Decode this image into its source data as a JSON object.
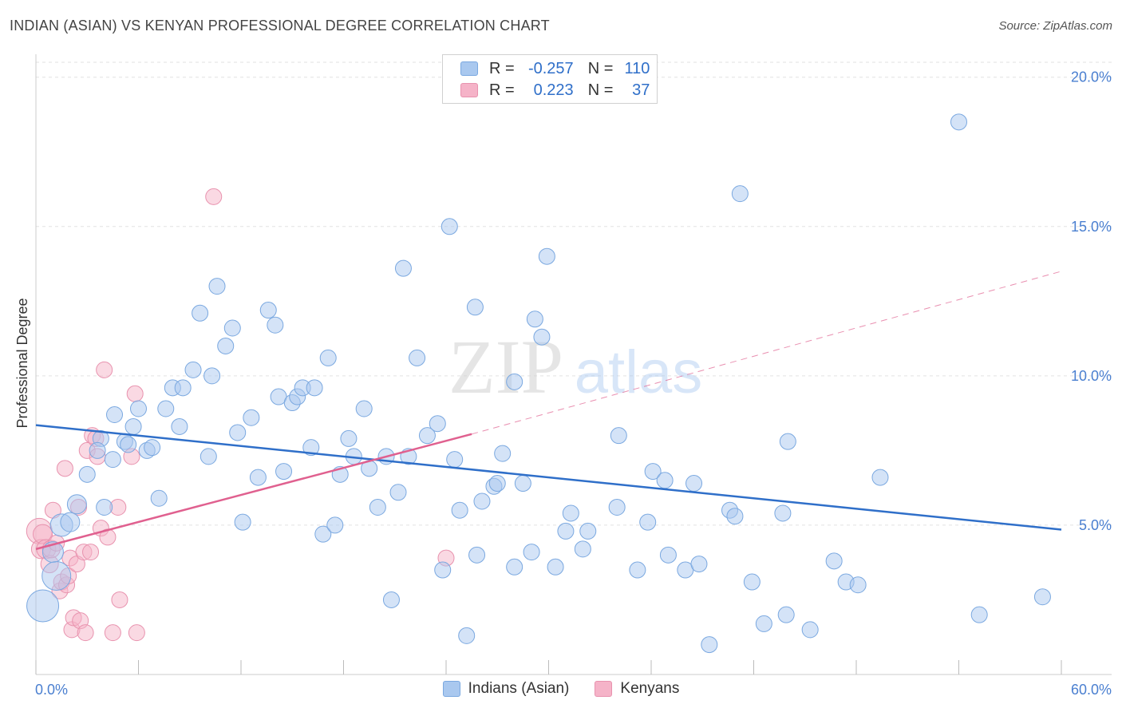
{
  "header": {
    "title": "INDIAN (ASIAN) VS KENYAN PROFESSIONAL DEGREE CORRELATION CHART",
    "source": "Source: ZipAtlas.com"
  },
  "watermark": {
    "zip": "ZIP",
    "atlas": "atlas"
  },
  "legend": {
    "rows": [
      {
        "r_label": "R =",
        "r_value": "-0.257",
        "n_label": "N =",
        "n_value": "110",
        "color": "#a9c8ef"
      },
      {
        "r_label": "R =",
        "r_value": "0.223",
        "n_label": "N =",
        "n_value": "37",
        "color": "#f5b3c8"
      }
    ]
  },
  "bottom_legend": {
    "items": [
      {
        "label": "Indians (Asian)",
        "color": "#a9c8ef"
      },
      {
        "label": "Kenyans",
        "color": "#f5b3c8"
      }
    ]
  },
  "colors": {
    "blue_fill": "#a9c8ef",
    "blue_stroke": "#7aa8e0",
    "blue_line": "#2f6fc9",
    "pink_fill": "#f5b3c8",
    "pink_stroke": "#e892ae",
    "pink_line": "#e0608f",
    "tick_label": "#4a7fd0",
    "grid": "#e2e2e2"
  },
  "chart_data": {
    "type": "scatter",
    "title": "INDIAN (ASIAN) VS KENYAN PROFESSIONAL DEGREE CORRELATION CHART",
    "xlabel": "",
    "ylabel": "Professional Degree",
    "xlim": [
      0,
      60
    ],
    "ylim": [
      0,
      20.5
    ],
    "x_tick_labels": [
      "0.0%",
      "60.0%"
    ],
    "y_ticks": [
      5,
      10,
      15,
      20
    ],
    "y_tick_labels": [
      "5.0%",
      "10.0%",
      "15.0%",
      "20.0%"
    ],
    "grid": true,
    "legend_position": "top-center",
    "series": [
      {
        "name": "Indians (Asian)",
        "color": "#a9c8ef",
        "trend": {
          "x": [
            0,
            60
          ],
          "y": [
            8.35,
            4.85
          ],
          "dashed": false
        },
        "points": [
          [
            1.5,
            5.0
          ],
          [
            1.0,
            4.1
          ],
          [
            0.4,
            2.3
          ],
          [
            1.2,
            3.3
          ],
          [
            2.4,
            5.7
          ],
          [
            2.0,
            5.1
          ],
          [
            3.0,
            6.7
          ],
          [
            3.8,
            7.9
          ],
          [
            3.6,
            7.5
          ],
          [
            4.0,
            5.6
          ],
          [
            4.5,
            7.2
          ],
          [
            4.6,
            8.7
          ],
          [
            5.2,
            7.8
          ],
          [
            5.4,
            7.7
          ],
          [
            5.7,
            8.3
          ],
          [
            6.0,
            8.9
          ],
          [
            6.5,
            7.5
          ],
          [
            6.8,
            7.6
          ],
          [
            7.2,
            5.9
          ],
          [
            7.6,
            8.9
          ],
          [
            8.0,
            9.6
          ],
          [
            8.4,
            8.3
          ],
          [
            8.6,
            9.6
          ],
          [
            9.2,
            10.2
          ],
          [
            9.6,
            12.1
          ],
          [
            10.1,
            7.3
          ],
          [
            10.3,
            10.0
          ],
          [
            10.6,
            13.0
          ],
          [
            11.1,
            11.0
          ],
          [
            11.5,
            11.6
          ],
          [
            11.8,
            8.1
          ],
          [
            12.1,
            5.1
          ],
          [
            12.6,
            8.6
          ],
          [
            13.0,
            6.6
          ],
          [
            13.6,
            12.2
          ],
          [
            14.0,
            11.7
          ],
          [
            14.2,
            9.3
          ],
          [
            14.5,
            6.8
          ],
          [
            15.0,
            9.1
          ],
          [
            15.3,
            9.3
          ],
          [
            15.6,
            9.6
          ],
          [
            16.1,
            7.6
          ],
          [
            16.3,
            9.6
          ],
          [
            16.8,
            4.7
          ],
          [
            17.1,
            10.6
          ],
          [
            17.5,
            5.0
          ],
          [
            17.8,
            6.7
          ],
          [
            18.3,
            7.9
          ],
          [
            18.6,
            7.3
          ],
          [
            19.2,
            8.9
          ],
          [
            19.5,
            6.9
          ],
          [
            20.0,
            5.6
          ],
          [
            20.5,
            7.3
          ],
          [
            20.8,
            2.5
          ],
          [
            21.2,
            6.1
          ],
          [
            21.5,
            13.6
          ],
          [
            21.8,
            7.3
          ],
          [
            22.3,
            10.6
          ],
          [
            22.9,
            8.0
          ],
          [
            23.5,
            8.4
          ],
          [
            23.8,
            3.5
          ],
          [
            24.2,
            15.0
          ],
          [
            24.5,
            7.2
          ],
          [
            24.8,
            5.5
          ],
          [
            25.2,
            1.3
          ],
          [
            25.7,
            12.3
          ],
          [
            25.8,
            4.0
          ],
          [
            26.1,
            5.8
          ],
          [
            26.8,
            6.3
          ],
          [
            27.0,
            6.4
          ],
          [
            27.3,
            7.4
          ],
          [
            28.0,
            3.6
          ],
          [
            28.0,
            9.8
          ],
          [
            28.5,
            6.4
          ],
          [
            29.0,
            4.1
          ],
          [
            29.2,
            11.9
          ],
          [
            29.6,
            11.3
          ],
          [
            29.9,
            14.0
          ],
          [
            30.4,
            3.6
          ],
          [
            31.0,
            4.8
          ],
          [
            31.3,
            5.4
          ],
          [
            32.0,
            4.2
          ],
          [
            32.3,
            4.8
          ],
          [
            34.0,
            5.6
          ],
          [
            34.1,
            8.0
          ],
          [
            35.2,
            3.5
          ],
          [
            35.8,
            5.1
          ],
          [
            36.1,
            6.8
          ],
          [
            36.8,
            6.5
          ],
          [
            37.0,
            4.0
          ],
          [
            38.0,
            3.5
          ],
          [
            38.5,
            6.4
          ],
          [
            38.8,
            3.7
          ],
          [
            39.4,
            1.0
          ],
          [
            40.6,
            5.5
          ],
          [
            40.9,
            5.3
          ],
          [
            41.2,
            16.1
          ],
          [
            41.9,
            3.1
          ],
          [
            42.6,
            1.7
          ],
          [
            43.7,
            5.4
          ],
          [
            43.9,
            2.0
          ],
          [
            44.0,
            7.8
          ],
          [
            45.3,
            1.5
          ],
          [
            46.7,
            3.8
          ],
          [
            47.4,
            3.1
          ],
          [
            48.1,
            3.0
          ],
          [
            49.4,
            6.6
          ],
          [
            54.0,
            18.5
          ],
          [
            55.2,
            2.0
          ],
          [
            58.9,
            2.6
          ]
        ],
        "sizes": [
          14,
          13,
          20,
          18,
          12,
          12,
          10,
          10,
          10,
          10,
          10,
          10,
          10,
          10,
          10,
          10,
          10,
          10,
          10,
          10,
          10,
          10,
          10,
          10,
          10,
          10,
          10,
          10,
          10,
          10,
          10,
          10,
          10,
          10,
          10,
          10,
          10,
          10,
          10,
          10,
          10,
          10,
          10,
          10,
          10,
          10,
          10,
          10,
          10,
          10,
          10,
          10,
          10,
          10,
          10,
          10,
          10,
          10,
          10,
          10,
          10,
          10,
          10,
          10,
          10,
          10,
          10,
          10,
          10,
          10,
          10,
          10,
          10,
          10,
          10,
          10,
          10,
          10,
          10,
          10,
          10,
          10,
          10,
          10,
          10,
          10,
          10,
          10,
          10,
          10,
          10,
          10,
          10,
          10,
          10,
          10,
          10,
          10,
          10,
          10,
          10,
          10,
          10,
          10,
          10,
          10,
          10,
          10,
          10,
          10
        ]
      },
      {
        "name": "Kenyans",
        "color": "#f5b3c8",
        "trend": {
          "x": [
            0,
            25.5
          ],
          "y": [
            4.2,
            8.05
          ],
          "dashed_x": [
            25.5,
            60
          ],
          "dashed_y": [
            8.05,
            13.5
          ]
        },
        "points": [
          [
            0.2,
            4.8
          ],
          [
            0.3,
            4.2
          ],
          [
            0.4,
            4.7
          ],
          [
            0.6,
            4.2
          ],
          [
            0.8,
            3.7
          ],
          [
            0.9,
            4.2
          ],
          [
            1.0,
            5.5
          ],
          [
            1.2,
            4.4
          ],
          [
            1.4,
            2.8
          ],
          [
            1.5,
            3.1
          ],
          [
            1.7,
            6.9
          ],
          [
            1.8,
            3.0
          ],
          [
            1.9,
            3.3
          ],
          [
            2.0,
            3.9
          ],
          [
            2.1,
            1.5
          ],
          [
            2.2,
            1.9
          ],
          [
            2.4,
            3.7
          ],
          [
            2.5,
            5.6
          ],
          [
            2.6,
            1.8
          ],
          [
            2.8,
            4.1
          ],
          [
            2.9,
            1.4
          ],
          [
            3.0,
            7.5
          ],
          [
            3.2,
            4.1
          ],
          [
            3.3,
            8.0
          ],
          [
            3.5,
            7.9
          ],
          [
            3.6,
            7.3
          ],
          [
            3.8,
            4.9
          ],
          [
            4.0,
            10.2
          ],
          [
            4.2,
            4.6
          ],
          [
            4.5,
            1.4
          ],
          [
            4.8,
            5.6
          ],
          [
            4.9,
            2.5
          ],
          [
            5.8,
            9.4
          ],
          [
            5.9,
            1.4
          ],
          [
            5.6,
            7.3
          ],
          [
            10.4,
            16.0
          ],
          [
            24.0,
            3.9
          ]
        ],
        "sizes": [
          16,
          12,
          12,
          12,
          11,
          11,
          10,
          10,
          10,
          10,
          10,
          10,
          10,
          10,
          10,
          10,
          10,
          10,
          10,
          10,
          10,
          10,
          10,
          10,
          10,
          10,
          10,
          10,
          10,
          10,
          10,
          10,
          10,
          10,
          10,
          10,
          10
        ]
      }
    ]
  }
}
